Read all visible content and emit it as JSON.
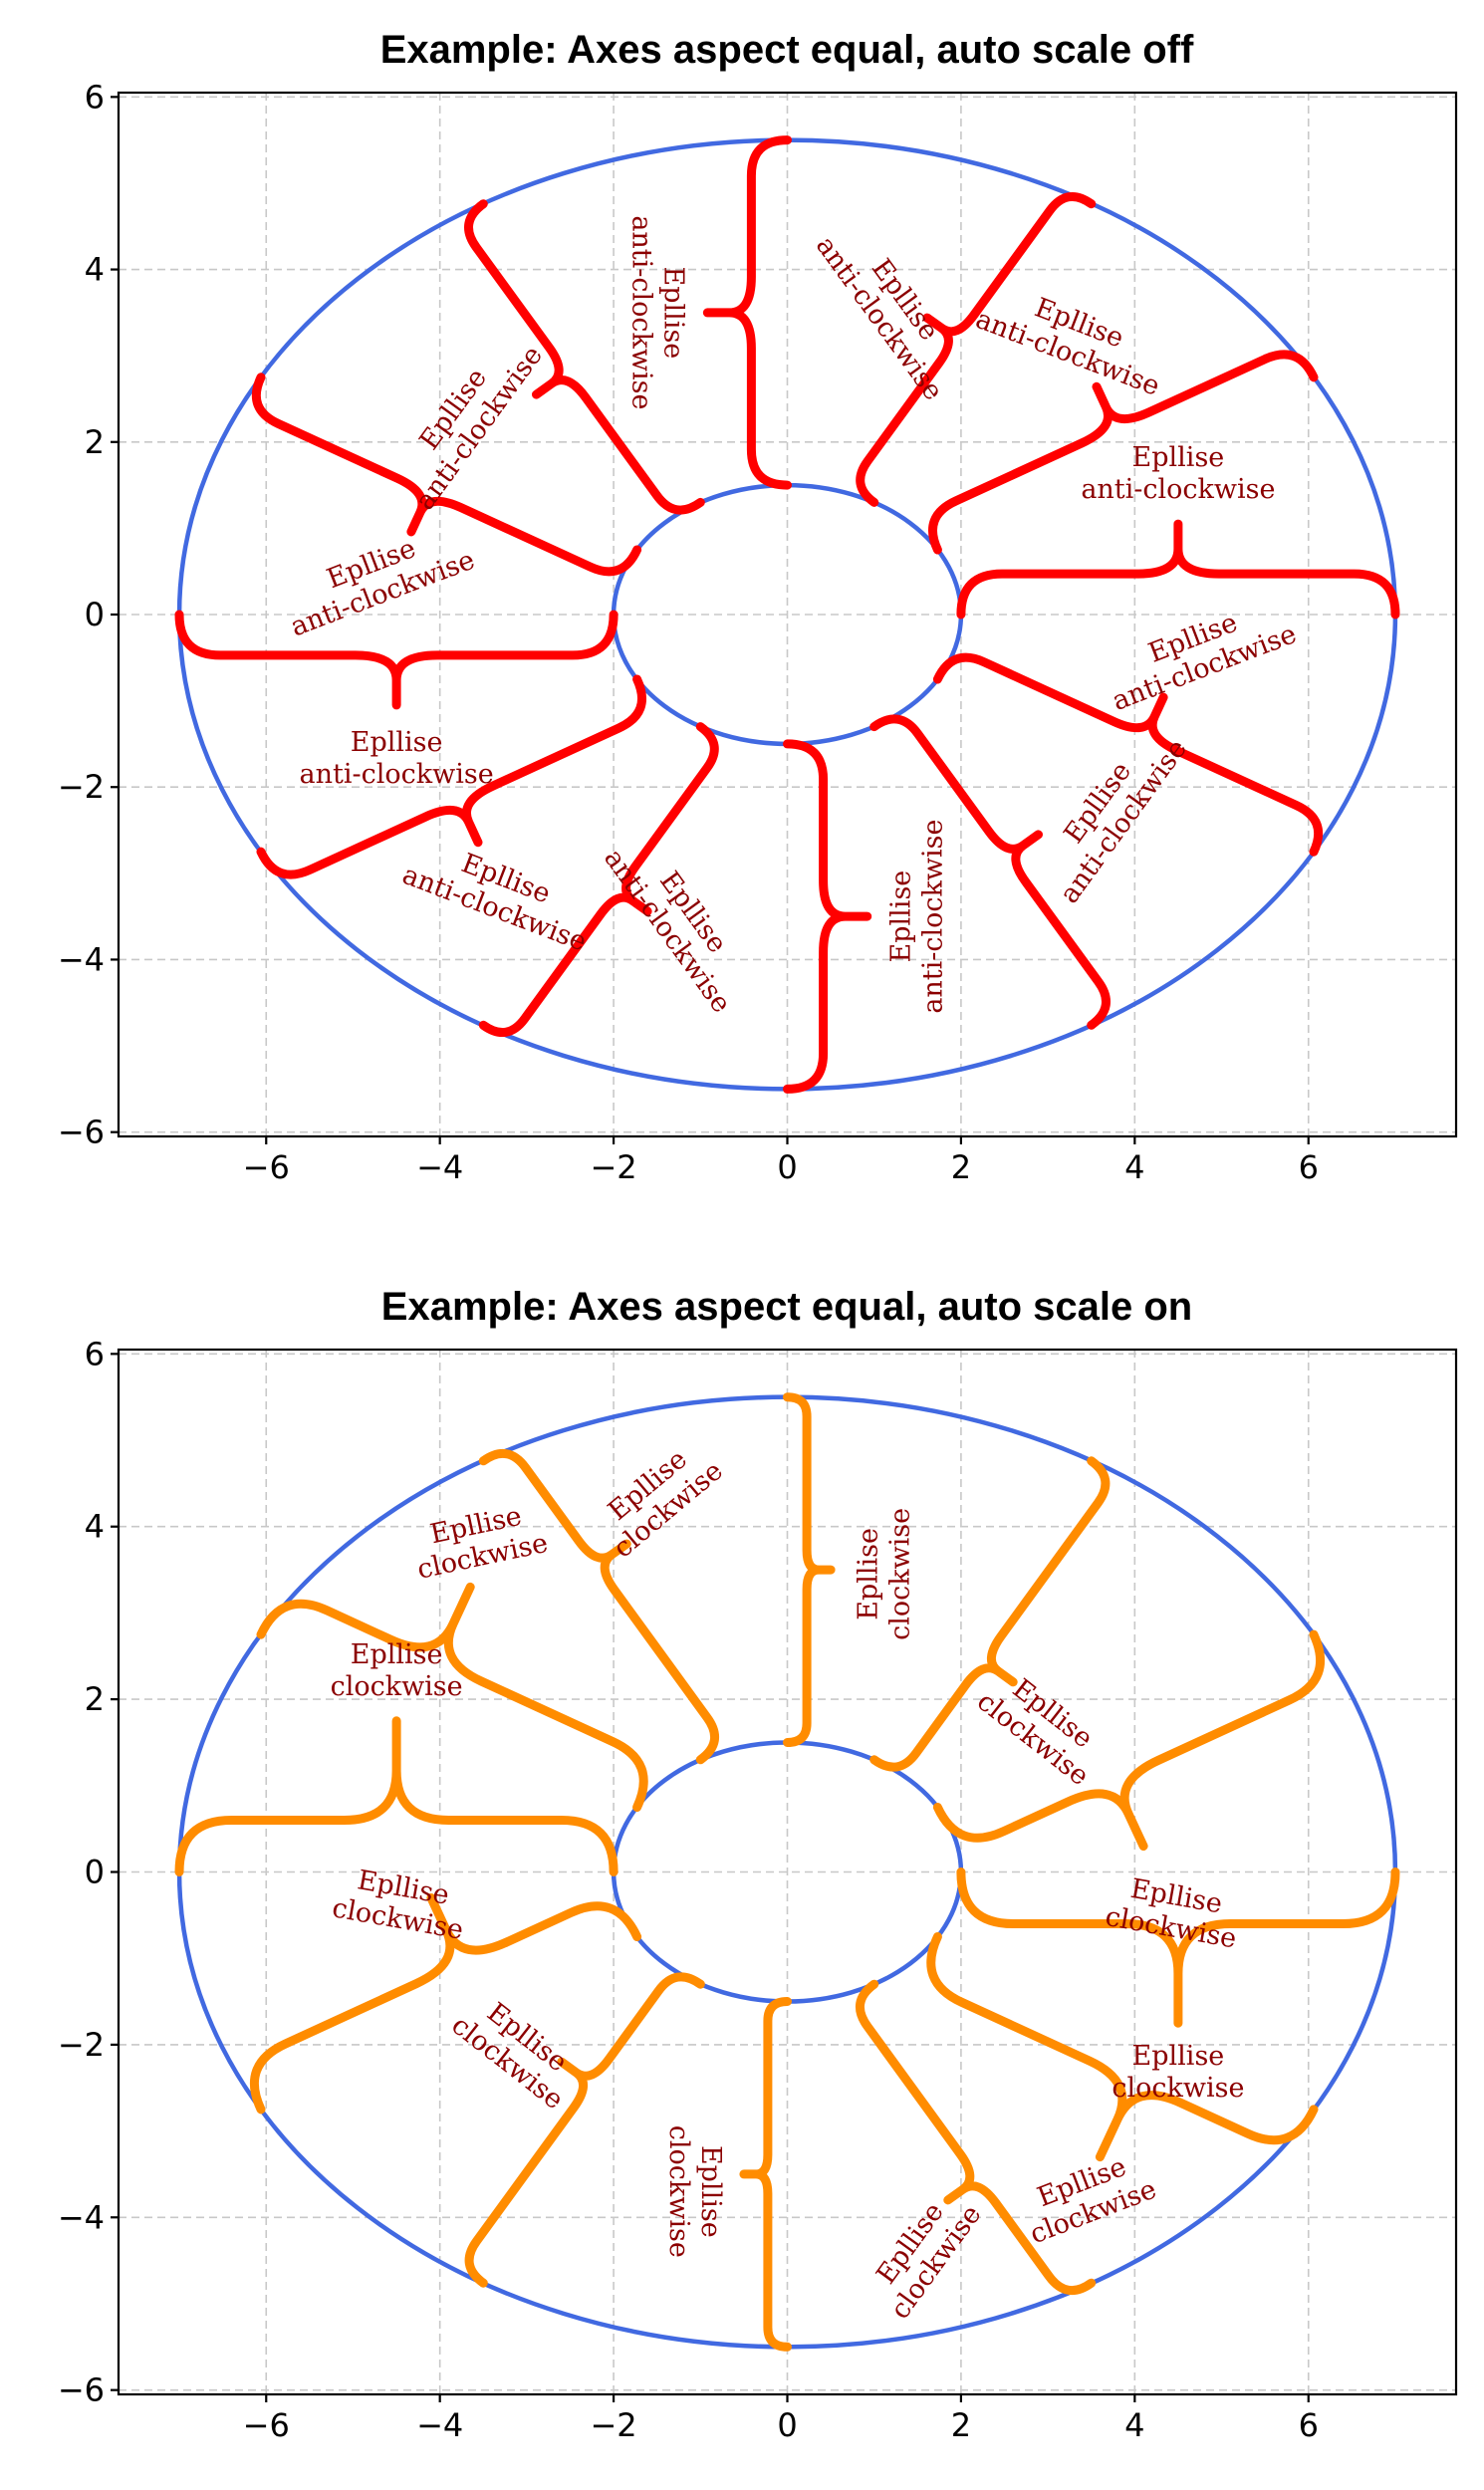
{
  "chart_data": [
    {
      "type": "line",
      "title": "Example: Axes aspect equal, auto scale off",
      "xlim": [
        -7.7,
        7.7
      ],
      "ylim": [
        -6.05,
        6.05
      ],
      "xticks": [
        -6,
        -4,
        -2,
        0,
        2,
        4,
        6
      ],
      "yticks": [
        -6,
        -4,
        -2,
        0,
        2,
        4,
        6
      ],
      "xtick_labels": [
        "−6",
        "−4",
        "−2",
        "0",
        "2",
        "4",
        "6"
      ],
      "ytick_labels": [
        "−6",
        "−4",
        "−2",
        "0",
        "2",
        "4",
        "6"
      ],
      "grid": true,
      "ellipse_color": "#4169e1",
      "ellipses": [
        {
          "center": [
            0,
            0
          ],
          "rx": 7,
          "ry": 5.5
        },
        {
          "center": [
            0,
            0
          ],
          "rx": 2,
          "ry": 1.5
        }
      ],
      "brace_color": "#ff0000",
      "annotation_text": [
        "Epllise",
        "anti-clockwise"
      ],
      "braces": [
        {
          "from": [
            2,
            0
          ],
          "to": [
            7,
            0
          ],
          "tip": [
            4.5,
            1.05
          ]
        },
        {
          "from": [
            1.73,
            0.75
          ],
          "to": [
            6.06,
            2.75
          ],
          "tip": [
            3.56,
            2.64
          ]
        },
        {
          "from": [
            1,
            1.3
          ],
          "to": [
            3.5,
            4.76
          ],
          "tip": [
            1.61,
            3.44
          ]
        },
        {
          "from": [
            0,
            1.5
          ],
          "to": [
            0,
            5.5
          ],
          "tip": [
            -0.92,
            3.5
          ]
        },
        {
          "from": [
            -1,
            1.3
          ],
          "to": [
            -3.5,
            4.76
          ],
          "tip": [
            -2.89,
            2.55
          ]
        },
        {
          "from": [
            -1.73,
            0.75
          ],
          "to": [
            -6.06,
            2.75
          ],
          "tip": [
            -4.33,
            0.96
          ]
        },
        {
          "from": [
            -2,
            0
          ],
          "to": [
            -7,
            0
          ],
          "tip": [
            -4.5,
            -1.05
          ]
        },
        {
          "from": [
            -1.73,
            -0.75
          ],
          "to": [
            -6.06,
            -2.75
          ],
          "tip": [
            -3.56,
            -2.64
          ]
        },
        {
          "from": [
            -1,
            -1.3
          ],
          "to": [
            -3.5,
            -4.76
          ],
          "tip": [
            -1.61,
            -3.44
          ]
        },
        {
          "from": [
            0,
            -1.5
          ],
          "to": [
            0,
            -5.5
          ],
          "tip": [
            0.92,
            -3.5
          ]
        },
        {
          "from": [
            1,
            -1.3
          ],
          "to": [
            3.5,
            -4.76
          ],
          "tip": [
            2.89,
            -2.55
          ]
        },
        {
          "from": [
            1.73,
            -0.75
          ],
          "to": [
            6.06,
            -2.75
          ],
          "tip": [
            4.33,
            -0.96
          ]
        }
      ],
      "labels": [
        {
          "pos": [
            4.5,
            1.65
          ],
          "rot": 0
        },
        {
          "pos": [
            3.3,
            3.22
          ],
          "rot": -21
        },
        {
          "pos": [
            1.22,
            3.55
          ],
          "rot": -54
        },
        {
          "pos": [
            -1.48,
            3.5
          ],
          "rot": -90
        },
        {
          "pos": [
            -3.71,
            2.28
          ],
          "rot": 54
        },
        {
          "pos": [
            -4.73,
            0.43
          ],
          "rot": 21
        },
        {
          "pos": [
            -4.5,
            -1.65
          ],
          "rot": 0
        },
        {
          "pos": [
            -3.3,
            -3.22
          ],
          "rot": -21
        },
        {
          "pos": [
            -1.22,
            -3.55
          ],
          "rot": -54
        },
        {
          "pos": [
            1.48,
            -3.5
          ],
          "rot": 90
        },
        {
          "pos": [
            3.71,
            -2.28
          ],
          "rot": 54
        },
        {
          "pos": [
            4.73,
            -0.43
          ],
          "rot": 21
        }
      ]
    },
    {
      "type": "line",
      "title": "Example: Axes aspect equal, auto scale on",
      "xlim": [
        -7.7,
        7.7
      ],
      "ylim": [
        -6.05,
        6.05
      ],
      "xticks": [
        -6,
        -4,
        -2,
        0,
        2,
        4,
        6
      ],
      "yticks": [
        -6,
        -4,
        -2,
        0,
        2,
        4,
        6
      ],
      "xtick_labels": [
        "−6",
        "−4",
        "−2",
        "0",
        "2",
        "4",
        "6"
      ],
      "ytick_labels": [
        "−6",
        "−4",
        "−2",
        "0",
        "2",
        "4",
        "6"
      ],
      "grid": true,
      "ellipse_color": "#4169e1",
      "ellipses": [
        {
          "center": [
            0,
            0
          ],
          "rx": 7,
          "ry": 5.5
        },
        {
          "center": [
            0,
            0
          ],
          "rx": 2,
          "ry": 1.5
        }
      ],
      "brace_color": "#ff8c00",
      "annotation_text": [
        "Epllise",
        "clockwise"
      ],
      "braces": [
        {
          "from": [
            2,
            0
          ],
          "to": [
            7,
            0
          ],
          "tip": [
            4.5,
            -1.75
          ]
        },
        {
          "from": [
            1.73,
            -0.75
          ],
          "to": [
            6.06,
            -2.75
          ],
          "tip": [
            3.6,
            -3.3
          ]
        },
        {
          "from": [
            1,
            -1.3
          ],
          "to": [
            3.5,
            -4.76
          ],
          "tip": [
            1.85,
            -3.8
          ]
        },
        {
          "from": [
            0,
            -1.5
          ],
          "to": [
            0,
            -5.5
          ],
          "tip": [
            -0.5,
            -3.5
          ]
        },
        {
          "from": [
            -1,
            -1.3
          ],
          "to": [
            -3.5,
            -4.76
          ],
          "tip": [
            -2.6,
            -2.2
          ]
        },
        {
          "from": [
            -1.73,
            -0.75
          ],
          "to": [
            -6.06,
            -2.75
          ],
          "tip": [
            -4.1,
            -0.3
          ]
        },
        {
          "from": [
            -2,
            0
          ],
          "to": [
            -7,
            0
          ],
          "tip": [
            -4.5,
            1.75
          ]
        },
        {
          "from": [
            -1.73,
            0.75
          ],
          "to": [
            -6.06,
            2.75
          ],
          "tip": [
            -3.65,
            3.3
          ]
        },
        {
          "from": [
            -1,
            1.3
          ],
          "to": [
            -3.5,
            4.76
          ],
          "tip": [
            -1.85,
            3.8
          ]
        },
        {
          "from": [
            0,
            1.5
          ],
          "to": [
            0,
            5.5
          ],
          "tip": [
            0.5,
            3.5
          ]
        },
        {
          "from": [
            1,
            1.3
          ],
          "to": [
            3.5,
            4.76
          ],
          "tip": [
            2.6,
            2.2
          ]
        },
        {
          "from": [
            1.73,
            0.75
          ],
          "to": [
            6.06,
            2.75
          ],
          "tip": [
            4.1,
            0.3
          ]
        }
      ],
      "labels": [
        {
          "pos": [
            4.5,
            -2.3
          ],
          "rot": 0
        },
        {
          "pos": [
            3.45,
            -3.75
          ],
          "rot": 21
        },
        {
          "pos": [
            1.55,
            -4.4
          ],
          "rot": 54
        },
        {
          "pos": [
            -1.05,
            -3.7
          ],
          "rot": -90
        },
        {
          "pos": [
            -3.1,
            -2.05
          ],
          "rot": -38
        },
        {
          "pos": [
            -4.45,
            -0.35
          ],
          "rot": -10
        },
        {
          "pos": [
            -4.5,
            2.35
          ],
          "rot": 0
        },
        {
          "pos": [
            -3.55,
            3.85
          ],
          "rot": 12
        },
        {
          "pos": [
            -1.5,
            4.35
          ],
          "rot": 40
        },
        {
          "pos": [
            1.1,
            3.45
          ],
          "rot": 90
        },
        {
          "pos": [
            2.95,
            1.7
          ],
          "rot": -38
        },
        {
          "pos": [
            4.45,
            -0.45
          ],
          "rot": -10
        }
      ]
    }
  ]
}
